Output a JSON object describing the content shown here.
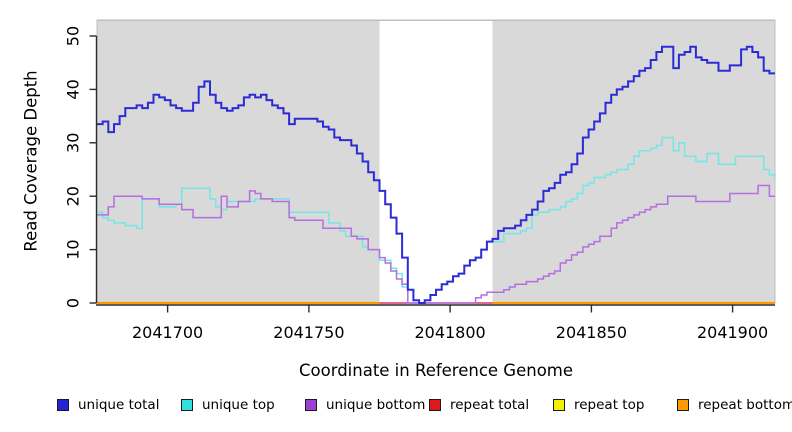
{
  "chart_data": {
    "type": "line",
    "subtype": "step",
    "title": "",
    "xlabel": "Coordinate in Reference Genome",
    "ylabel": "Read Coverage Depth",
    "xlim": [
      2041675,
      2041915
    ],
    "ylim": [
      0,
      53
    ],
    "x_ticks": [
      2041700,
      2041750,
      2041800,
      2041850,
      2041900
    ],
    "y_ticks": [
      0,
      10,
      20,
      30,
      40,
      50
    ],
    "grid": false,
    "plot_bg": "#d9d9d9",
    "axis_color": "#2b2b2b",
    "highlight_region": {
      "x0": 2041775,
      "x1": 2041815,
      "color": "#ffffff"
    },
    "x0": 2041675,
    "dx": 2,
    "legend_position": "bottom",
    "legend": [
      {
        "label": "unique total",
        "color": "#2323d8"
      },
      {
        "label": "unique top",
        "color": "#2ee0e0"
      },
      {
        "label": "unique bottom",
        "color": "#9d3fd3"
      },
      {
        "label": "repeat total",
        "color": "#dc1a1a"
      },
      {
        "label": "repeat top",
        "color": "#f0f000"
      },
      {
        "label": "repeat bottom",
        "color": "#ff9900"
      }
    ],
    "series": [
      {
        "name": "repeat total",
        "color": "#d8376e",
        "width": 1.6,
        "x": [
          2041675,
          2041915
        ],
        "values": [
          0,
          0
        ]
      },
      {
        "name": "repeat top",
        "color": "#f0f000",
        "width": 1.6,
        "x": [
          2041675,
          2041775,
          null,
          2041815,
          2041915
        ],
        "values": [
          0,
          0,
          null,
          0,
          0
        ]
      },
      {
        "name": "repeat bottom",
        "color": "#ff9900",
        "width": 2.2,
        "x": [
          2041675,
          2041775,
          null,
          2041815,
          2041915
        ],
        "values": [
          0,
          0,
          null,
          0,
          0
        ]
      },
      {
        "name": "unique top",
        "color": "#73e6e6",
        "width": 1.5,
        "values": [
          17,
          16,
          15.5,
          15,
          15,
          14.5,
          14.5,
          14,
          19.5,
          19.5,
          19.5,
          18,
          18,
          18,
          18.5,
          21.5,
          21.5,
          21.5,
          21.5,
          21.5,
          19.5,
          18,
          17.5,
          19,
          19,
          19,
          19,
          19,
          19.5,
          19.5,
          19.5,
          19.5,
          19.5,
          19.5,
          17,
          17,
          17,
          17,
          17,
          17,
          17,
          15,
          15,
          13.5,
          12.5,
          12.5,
          12.5,
          10.5,
          10,
          10,
          8,
          8,
          6.5,
          5.5,
          3,
          0,
          0,
          0,
          0.5,
          1.5,
          2.5,
          3.5,
          4,
          5,
          5.5,
          7,
          8,
          8.5,
          10,
          11.5,
          11.5,
          11.5,
          13,
          13,
          13,
          13.5,
          14,
          16.5,
          17,
          17,
          17.5,
          17.5,
          18,
          19,
          19.5,
          20.5,
          22,
          22.5,
          23.5,
          23.5,
          24,
          24.5,
          25,
          25,
          26,
          27.5,
          28.5,
          28.5,
          29,
          29.5,
          31,
          31,
          28.5,
          30,
          27.5,
          27.5,
          26.5,
          26.5,
          28,
          28,
          26,
          26,
          26,
          27.5,
          27.5,
          27.5,
          27.5,
          27.5,
          25,
          24,
          23.5
        ]
      },
      {
        "name": "unique bottom",
        "color": "#b46ee0",
        "width": 1.5,
        "values": [
          16.5,
          16.5,
          18,
          20,
          20,
          20,
          20,
          20,
          19.5,
          19.5,
          19.5,
          18.5,
          18.5,
          18.5,
          18.5,
          17.5,
          17.5,
          16,
          16,
          16,
          16,
          16,
          20,
          18,
          18,
          19,
          19,
          21,
          20.5,
          19.5,
          19.5,
          19,
          19,
          19,
          16,
          15.5,
          15.5,
          15.5,
          15.5,
          15.5,
          14,
          14,
          14,
          14,
          14,
          12.5,
          12,
          12,
          10,
          10,
          8.5,
          7.5,
          6,
          4.5,
          3.5,
          0,
          0,
          0,
          0,
          0,
          0,
          0,
          0,
          0,
          0,
          0,
          0,
          1,
          1.5,
          2,
          2,
          2,
          2.5,
          3,
          3.5,
          3.5,
          4,
          4,
          4.5,
          5,
          5.5,
          6,
          7.5,
          8,
          9,
          9.5,
          10.5,
          11,
          11.5,
          12.5,
          12.5,
          14,
          15,
          15.5,
          16,
          16.5,
          17,
          17.5,
          18,
          18.5,
          18.5,
          20,
          20,
          20,
          20,
          20,
          19,
          19,
          19,
          19,
          19,
          19,
          20.5,
          20.5,
          20.5,
          20.5,
          20.5,
          22,
          22,
          20,
          20
        ]
      },
      {
        "name": "unique total",
        "color": "#2b2bd8",
        "width": 2,
        "values": [
          33.5,
          34,
          32,
          33.5,
          35,
          36.5,
          36.5,
          37,
          36.5,
          37.5,
          39,
          38.5,
          38,
          37,
          36.5,
          36,
          36,
          37.5,
          40.5,
          41.5,
          39,
          37.5,
          36.5,
          36,
          36.5,
          37,
          38.5,
          39,
          38.5,
          39,
          38,
          37,
          36.5,
          35.5,
          33.5,
          34.5,
          34.5,
          34.5,
          34.5,
          34,
          33,
          32.5,
          31,
          30.5,
          30.5,
          29.5,
          28,
          26.5,
          24.5,
          23,
          21,
          18.5,
          16,
          13,
          8.5,
          2.5,
          0.5,
          0,
          0.5,
          1.5,
          2.5,
          3.5,
          4,
          5,
          5.5,
          7,
          8,
          8.5,
          10,
          11.5,
          12,
          13.5,
          14,
          14,
          14.5,
          15.5,
          16.5,
          17.5,
          19,
          21,
          21.5,
          22.5,
          24,
          24.5,
          26,
          28,
          31,
          32.5,
          34,
          35.5,
          37.5,
          39,
          40,
          40.5,
          41.5,
          42.5,
          43.5,
          44,
          45.5,
          47,
          48,
          48,
          44,
          46.5,
          47,
          48,
          46,
          45.5,
          45,
          45,
          43.5,
          43.5,
          44.5,
          44.5,
          47.5,
          48,
          47,
          46,
          43.5,
          43,
          43
        ]
      }
    ]
  }
}
